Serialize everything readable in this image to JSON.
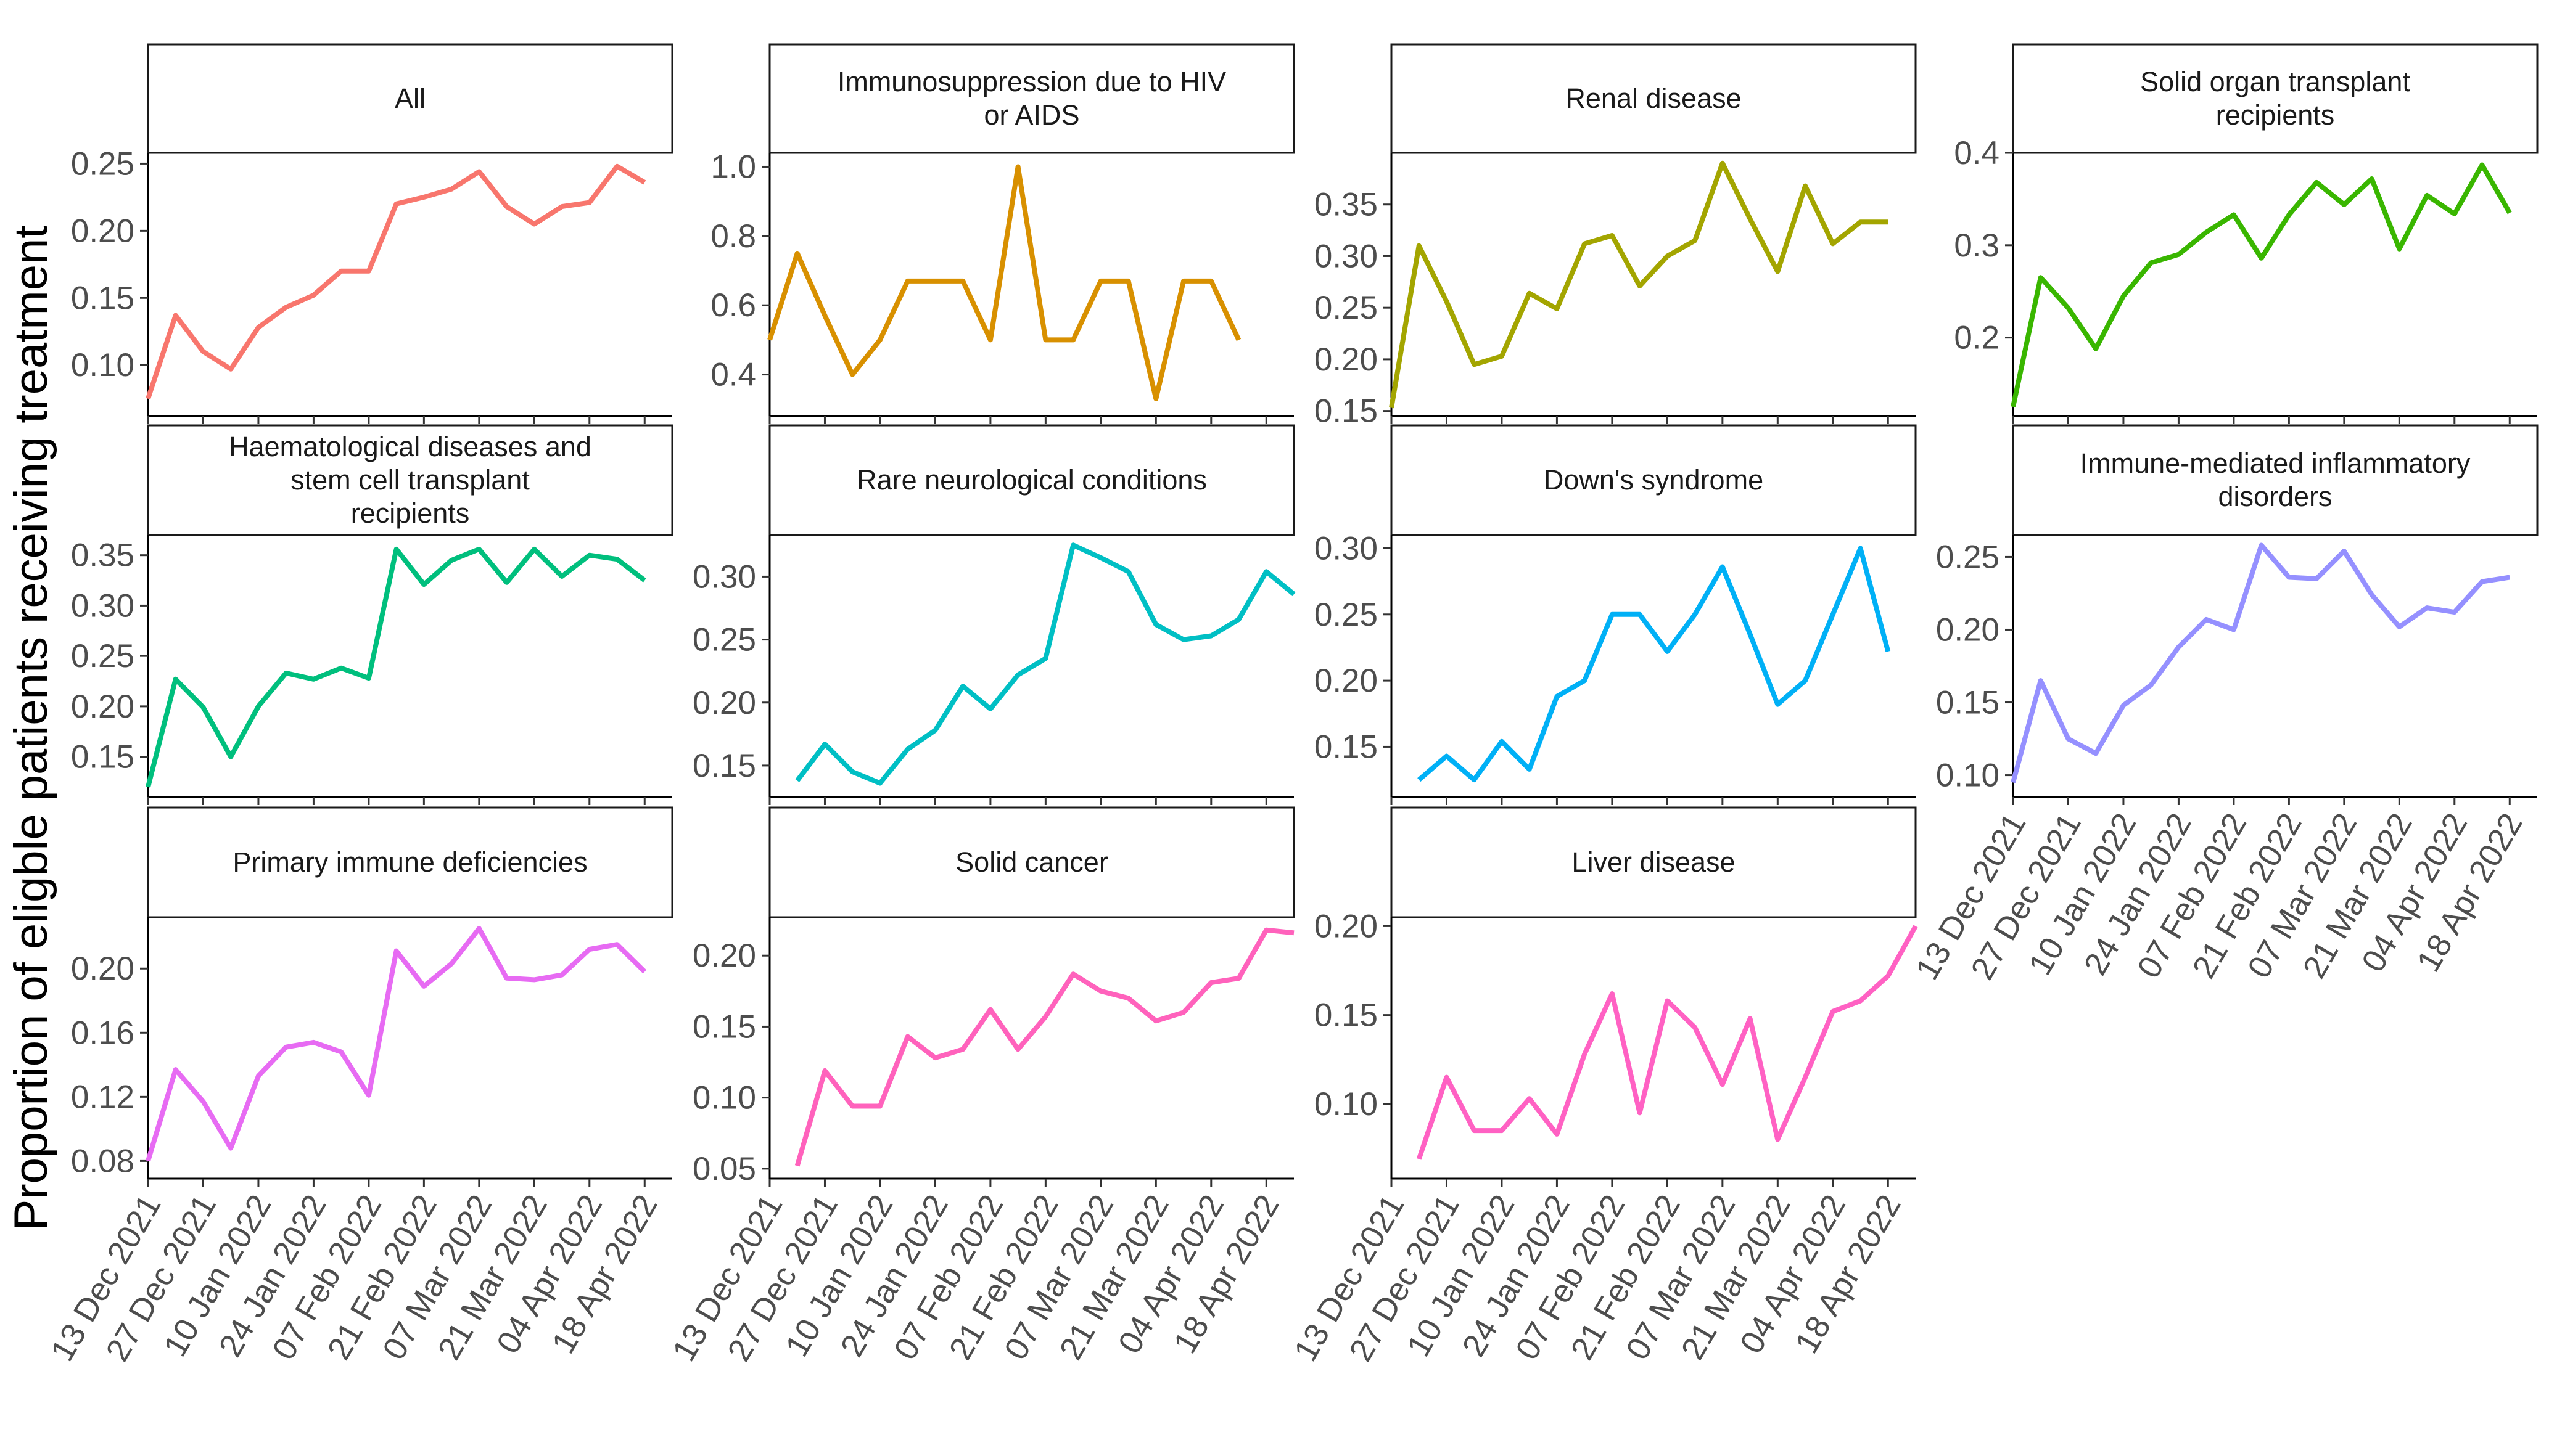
{
  "ylabel": "Proportion of eligble patients receiving treatment",
  "x_tick_labels": [
    "13 Dec 2021",
    "27 Dec 2021",
    "10 Jan 2022",
    "24 Jan 2022",
    "07 Feb 2022",
    "21 Feb 2022",
    "07 Mar 2022",
    "21 Mar 2022",
    "04 Apr 2022",
    "18 Apr 2022"
  ],
  "chart_data": {
    "type": "line",
    "facet_layout": "4 columns, 3 rows, free y scales",
    "legend": "none",
    "grid": false,
    "x_type": "date",
    "xlim": [
      "2021-12-13",
      "2022-04-25"
    ],
    "x": [
      "2021-12-13",
      "2021-12-20",
      "2021-12-27",
      "2022-01-03",
      "2022-01-10",
      "2022-01-17",
      "2022-01-24",
      "2022-01-31",
      "2022-02-07",
      "2022-02-14",
      "2022-02-21",
      "2022-02-28",
      "2022-03-07",
      "2022-03-14",
      "2022-03-21",
      "2022-03-28",
      "2022-04-04",
      "2022-04-11",
      "2022-04-18",
      "2022-04-25"
    ],
    "panels": [
      {
        "title": [
          "All"
        ],
        "color": "#F8766D",
        "yticks": [
          "0.10",
          "0.15",
          "0.20",
          "0.25"
        ],
        "ylim": [
          0.062,
          0.258
        ],
        "values": [
          0.075,
          0.137,
          0.11,
          0.097,
          0.128,
          0.143,
          0.152,
          0.17,
          0.17,
          0.22,
          0.225,
          0.231,
          0.244,
          0.218,
          0.205,
          0.218,
          0.221,
          0.248,
          0.236,
          null
        ]
      },
      {
        "title": [
          "Immunosuppression due to HIV",
          "or AIDS"
        ],
        "color": "#D89000",
        "yticks": [
          "0.4",
          "0.6",
          "0.8",
          "1.0"
        ],
        "ylim": [
          0.28,
          1.04
        ],
        "values": [
          0.5,
          0.75,
          0.57,
          0.4,
          0.5,
          0.67,
          0.67,
          0.67,
          0.5,
          1.0,
          0.5,
          0.5,
          0.67,
          0.67,
          0.33,
          0.67,
          0.67,
          0.5,
          null,
          null
        ]
      },
      {
        "title": [
          "Renal disease"
        ],
        "color": "#A3A500",
        "yticks": [
          "0.15",
          "0.20",
          "0.25",
          "0.30",
          "0.35"
        ],
        "ylim": [
          0.145,
          0.4
        ],
        "values": [
          0.153,
          0.31,
          0.256,
          0.195,
          0.203,
          0.264,
          0.249,
          0.312,
          0.32,
          0.271,
          0.3,
          0.315,
          0.39,
          0.336,
          0.285,
          0.368,
          0.312,
          0.333,
          0.333,
          null
        ]
      },
      {
        "title": [
          "Solid organ transplant",
          "recipients"
        ],
        "color": "#39B600",
        "yticks": [
          "0.2",
          "0.3",
          "0.4"
        ],
        "ylim": [
          0.115,
          0.4
        ],
        "values": [
          0.125,
          0.265,
          0.232,
          0.188,
          0.245,
          0.281,
          0.29,
          0.314,
          0.333,
          0.286,
          0.333,
          0.368,
          0.344,
          0.372,
          0.296,
          0.354,
          0.334,
          0.387,
          0.335,
          null
        ]
      },
      {
        "title": [
          "Haematological diseases and",
          "stem cell transplant",
          "recipients"
        ],
        "color": "#00BF7D",
        "yticks": [
          "0.15",
          "0.20",
          "0.25",
          "0.30",
          "0.35"
        ],
        "ylim": [
          0.11,
          0.37
        ],
        "values": [
          0.12,
          0.227,
          0.199,
          0.15,
          0.2,
          0.233,
          0.227,
          0.238,
          0.228,
          0.356,
          0.321,
          0.345,
          0.356,
          0.323,
          0.356,
          0.329,
          0.35,
          0.346,
          0.325,
          null
        ]
      },
      {
        "title": [
          "Rare neurological conditions"
        ],
        "color": "#00BFC4",
        "yticks": [
          "0.15",
          "0.20",
          "0.25",
          "0.30"
        ],
        "ylim": [
          0.125,
          0.333
        ],
        "values": [
          null,
          0.138,
          0.167,
          0.145,
          0.136,
          0.163,
          0.178,
          0.213,
          0.195,
          0.222,
          0.235,
          0.325,
          0.315,
          0.304,
          0.262,
          0.25,
          0.253,
          0.266,
          0.304,
          0.286
        ]
      },
      {
        "title": [
          "Down's syndrome"
        ],
        "color": "#00B0F6",
        "yticks": [
          "0.15",
          "0.20",
          "0.25",
          "0.30"
        ],
        "ylim": [
          0.112,
          0.31
        ],
        "values": [
          null,
          0.125,
          0.143,
          0.125,
          0.154,
          0.133,
          0.188,
          0.2,
          0.25,
          0.25,
          0.222,
          0.25,
          0.286,
          0.235,
          0.182,
          0.2,
          0.25,
          0.3,
          0.222,
          null
        ]
      },
      {
        "title": [
          "Immune-mediated inflammatory",
          "disorders"
        ],
        "color": "#9590FF",
        "yticks": [
          "0.10",
          "0.15",
          "0.20",
          "0.25"
        ],
        "ylim": [
          0.085,
          0.265
        ],
        "values": [
          0.095,
          0.165,
          0.125,
          0.115,
          0.148,
          0.162,
          0.188,
          0.207,
          0.2,
          0.258,
          0.236,
          0.235,
          0.254,
          0.224,
          0.202,
          0.215,
          0.212,
          0.233,
          0.236,
          null
        ]
      },
      {
        "title": [
          "Primary immune deficiencies"
        ],
        "color": "#E76BF3",
        "yticks": [
          "0.08",
          "0.12",
          "0.16",
          "0.20"
        ],
        "ylim": [
          0.069,
          0.232
        ],
        "values": [
          0.08,
          0.137,
          0.117,
          0.088,
          0.133,
          0.151,
          0.154,
          0.148,
          0.121,
          0.211,
          0.189,
          0.203,
          0.225,
          0.194,
          0.193,
          0.196,
          0.212,
          0.215,
          0.198,
          null
        ]
      },
      {
        "title": [
          "Solid cancer"
        ],
        "color": "#FF62BC",
        "yticks": [
          "0.05",
          "0.10",
          "0.15",
          "0.20"
        ],
        "ylim": [
          0.043,
          0.227
        ],
        "values": [
          null,
          0.052,
          0.119,
          0.094,
          0.094,
          0.143,
          0.128,
          0.134,
          0.162,
          0.134,
          0.157,
          0.187,
          0.175,
          0.17,
          0.154,
          0.16,
          0.181,
          0.184,
          0.218,
          0.216
        ]
      },
      {
        "title": [
          "Liver disease"
        ],
        "color": "#FF61C3",
        "yticks": [
          "0.10",
          "0.15",
          "0.20"
        ],
        "ylim": [
          0.058,
          0.205
        ],
        "values": [
          null,
          0.069,
          0.115,
          0.085,
          0.085,
          0.103,
          0.083,
          0.128,
          0.162,
          0.095,
          0.158,
          0.143,
          0.111,
          0.148,
          0.08,
          0.115,
          0.152,
          0.158,
          0.172,
          0.2
        ]
      }
    ]
  }
}
